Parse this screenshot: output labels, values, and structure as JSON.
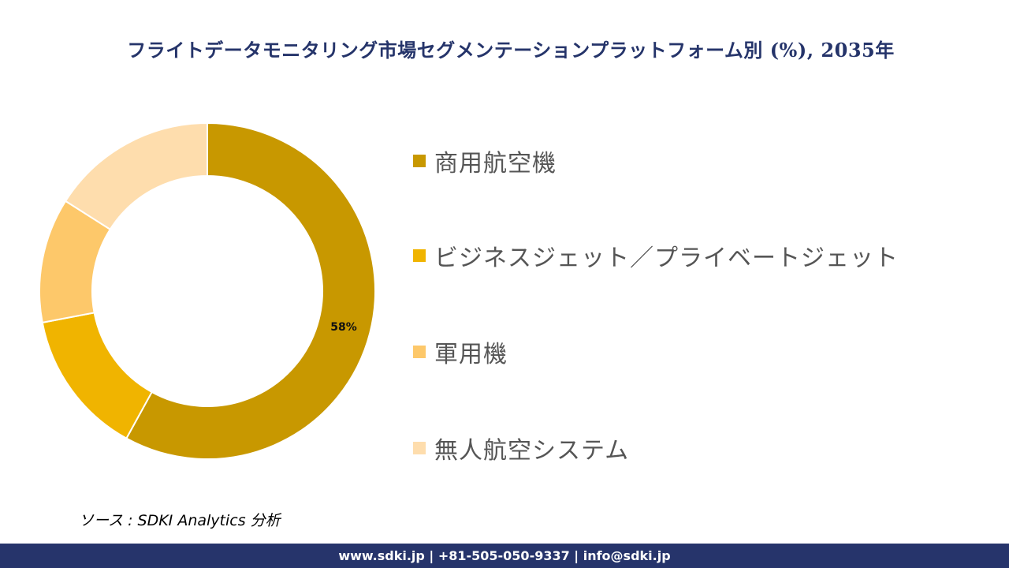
{
  "title": "フライトデータモニタリング市場セグメンテーションプラットフォーム別 (%), 2035年",
  "chart_data": {
    "type": "pie",
    "variant": "donut",
    "title": "フライトデータモニタリング市場セグメンテーションプラットフォーム別 (%), 2035年",
    "categories": [
      "商用航空機",
      "ビジネスジェット／プライベートジェット",
      "軍用機",
      "無人航空システム"
    ],
    "values": [
      58,
      14,
      12,
      16
    ],
    "colors": [
      "#C89800",
      "#F0B400",
      "#FDC86A",
      "#FEDDAD"
    ],
    "data_labels": [
      "58%",
      "",
      "",
      ""
    ],
    "legend_position": "right",
    "start_angle": "12 o'clock, clockwise"
  },
  "legend": {
    "items": [
      {
        "label": "商用航空機",
        "color": "#C89800"
      },
      {
        "label": "ビジネスジェット／プライベートジェット",
        "color": "#F0B400"
      },
      {
        "label": "軍用機",
        "color": "#FDC86A"
      },
      {
        "label": "無人航空システム",
        "color": "#FEDDAD"
      }
    ]
  },
  "source": "ソース : SDKI Analytics  分析",
  "footer": {
    "contact": "www.sdki.jp | +81-505-050-9337 | info@sdki.jp"
  }
}
